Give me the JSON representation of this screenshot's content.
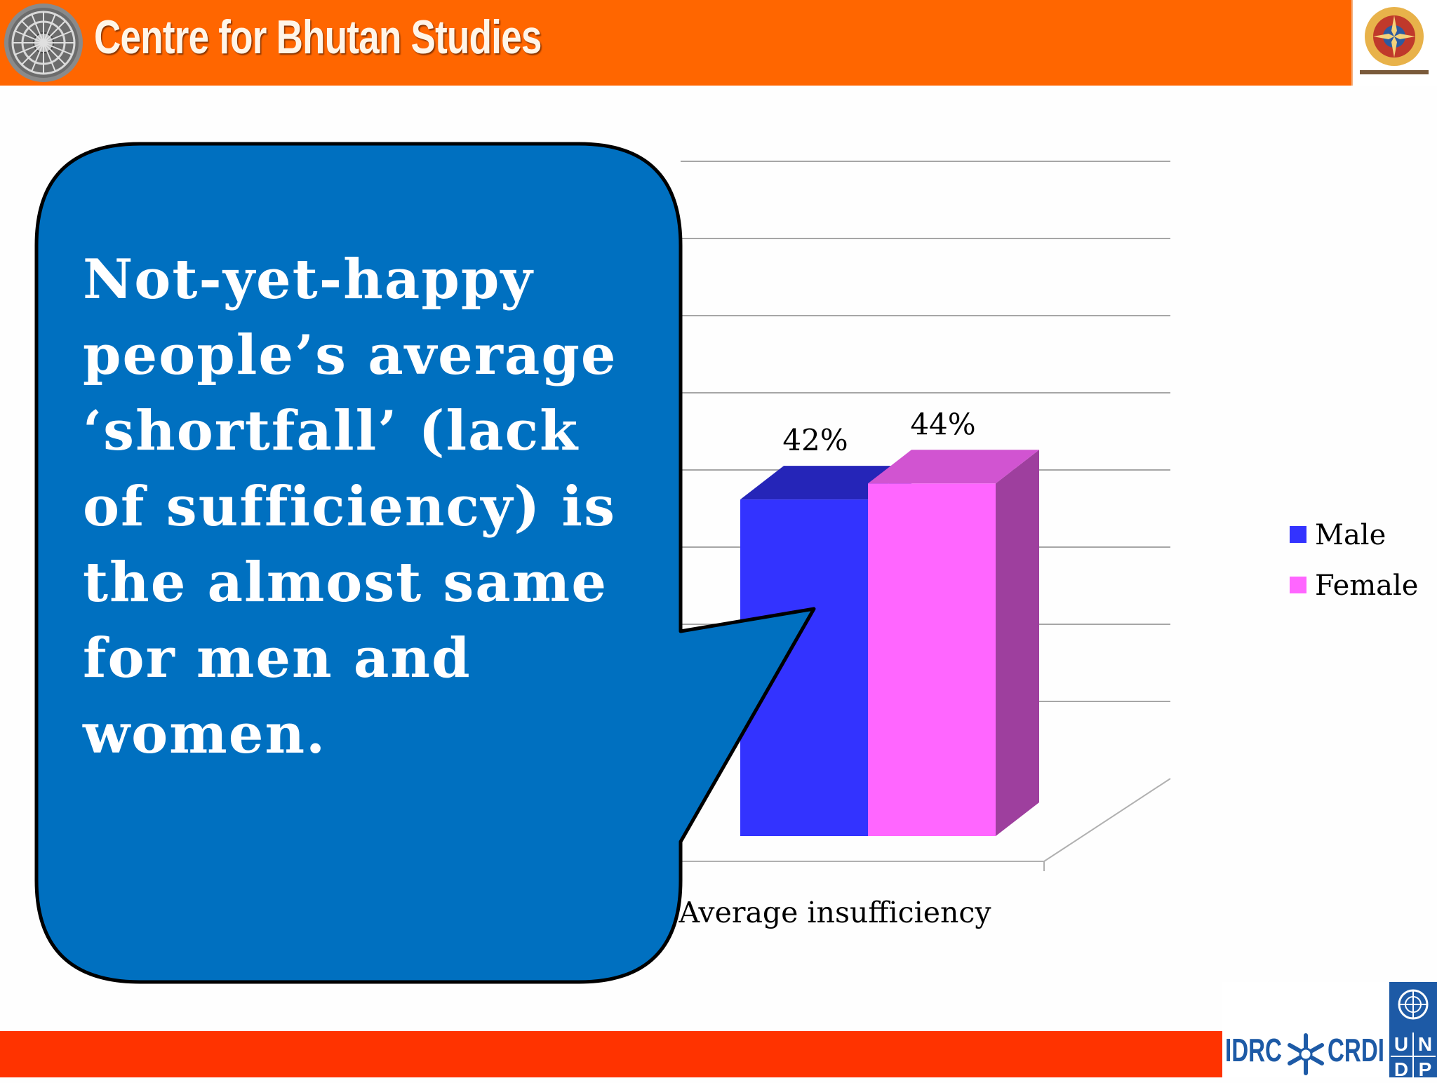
{
  "header": {
    "title": "Centre for Bhutan Studies",
    "logo_icon": "dharma-wheel-icon",
    "emblem_icon": "bhutan-emblem-icon",
    "background_color": "#ff6600"
  },
  "callout": {
    "text": "Not-yet-happy\npeople’s average\n‘shortfall’  (lack\nof sufficiency) is\nthe almost same\nfor men and\nwomen.",
    "fill_color": "#0070c0"
  },
  "chart_data": {
    "type": "bar",
    "categories": [
      "Average insufficiency"
    ],
    "series": [
      {
        "name": "Male",
        "values": [
          42
        ],
        "color": "#3333ff",
        "label": "42%"
      },
      {
        "name": "Female",
        "values": [
          44
        ],
        "color": "#ff66ff",
        "label": "44%"
      }
    ],
    "ylim": [
      0,
      80
    ],
    "grid": true,
    "legend": "right",
    "style": "3d"
  },
  "footer": {
    "bar_color": "#ff3300",
    "logos": {
      "idrc": "IDRC",
      "crdi": "CRDI",
      "undp": "UNDP",
      "idrc_icon": "idrc-star-icon",
      "un_icon": "un-emblem-icon"
    }
  }
}
